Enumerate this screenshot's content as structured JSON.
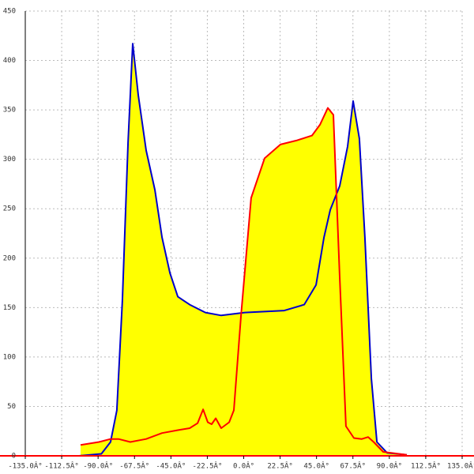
{
  "chart_data": {
    "type": "line",
    "fill_color": "#ffff00",
    "grid": true,
    "xlim": [
      -135,
      135
    ],
    "ylim": [
      0,
      450
    ],
    "xticks": [
      {
        "value": -135,
        "label": "-135.0Â°"
      },
      {
        "value": -112.5,
        "label": "-112.5Â°"
      },
      {
        "value": -90,
        "label": "-90.0Â°"
      },
      {
        "value": -67.5,
        "label": "-67.5Â°"
      },
      {
        "value": -45,
        "label": "-45.0Â°"
      },
      {
        "value": -22.5,
        "label": "-22.5Â°"
      },
      {
        "value": 0,
        "label": "0.0Â°"
      },
      {
        "value": 22.5,
        "label": "22.5Â°"
      },
      {
        "value": 45,
        "label": "45.0Â°"
      },
      {
        "value": 67.5,
        "label": "67.5Â°"
      },
      {
        "value": 90,
        "label": "90.0Â°"
      },
      {
        "value": 112.5,
        "label": "112.5Â°"
      },
      {
        "value": 135,
        "label": "135.0Â°"
      }
    ],
    "yticks": [
      0,
      50,
      100,
      150,
      200,
      250,
      300,
      350,
      400,
      450
    ],
    "series": [
      {
        "color": "#0000cc",
        "x": [
          -101.8,
          -88,
          -82.3,
          -78.4,
          -75,
          -71.5,
          -68.6,
          -65.2,
          -60.3,
          -54.9,
          -50.5,
          -45.6,
          -40.7,
          -33.4,
          -23.7,
          -13.9,
          0.7,
          25.1,
          37.4,
          44.7,
          49.6,
          53.5,
          59.3,
          64.2,
          67.6,
          71.5,
          74.9,
          78.9,
          82.3,
          88.6,
          100.8
        ],
        "values": [
          0,
          2,
          14,
          46,
          157,
          317,
          417,
          365,
          309,
          269,
          221,
          185,
          161,
          153,
          145,
          142,
          145,
          147,
          153,
          173,
          221,
          249,
          273,
          313,
          359,
          321,
          221,
          78,
          14,
          3,
          1
        ]
      },
      {
        "color": "#ff0000",
        "x": [
          -100.8,
          -89.5,
          -82.3,
          -77.4,
          -70.1,
          -60.3,
          -50.5,
          -40.7,
          -33.4,
          -28.5,
          -25.1,
          -22.2,
          -19.8,
          -17.3,
          -13.9,
          -9.0,
          -6.1,
          -1.7,
          4.6,
          12.9,
          22.7,
          32.5,
          42.2,
          47.1,
          52.0,
          55.4,
          59.3,
          63.2,
          68.1,
          73.0,
          76.9,
          80.3,
          86.2,
          100.8
        ],
        "values": [
          11,
          14,
          17,
          17,
          14,
          17,
          23,
          26,
          28,
          33,
          47,
          34,
          32,
          38,
          28,
          34,
          46,
          141,
          261,
          301,
          315,
          319,
          324,
          335,
          352,
          345,
          181,
          30,
          18,
          17,
          19,
          14,
          4,
          1
        ]
      }
    ]
  }
}
